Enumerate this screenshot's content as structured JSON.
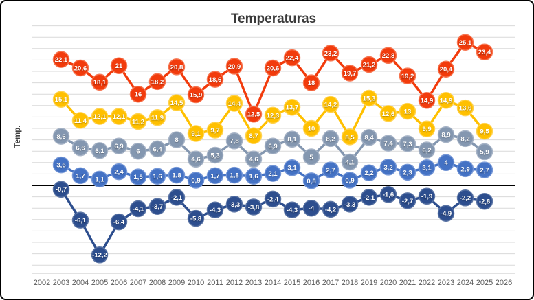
{
  "window": {
    "background": "#ffffff",
    "border_color": "#000000"
  },
  "chart_data": {
    "type": "line",
    "title": "Temperaturas",
    "xlabel": "",
    "ylabel": "Temp.",
    "legend_position": "none",
    "grid": true,
    "gridline_color": "#D9D9D9",
    "zero_line_color": "#000000",
    "axis_line_color": "#C6C6C6",
    "ylim": [
      -16,
      28
    ],
    "grid_step": 2,
    "x_axis_labels": [
      "2002",
      "2003",
      "2004",
      "2005",
      "2006",
      "2007",
      "2008",
      "2009",
      "2010",
      "2011",
      "2012",
      "2013",
      "2014",
      "2015",
      "2016",
      "2017",
      "2018",
      "2019",
      "2020",
      "2021",
      "2022",
      "2023",
      "2024",
      "2025",
      "2026"
    ],
    "years": [
      2003,
      2004,
      2005,
      2006,
      2007,
      2008,
      2009,
      2010,
      2011,
      2012,
      2013,
      2014,
      2015,
      2016,
      2017,
      2018,
      2019,
      2020,
      2021,
      2022,
      2023,
      2024,
      2025
    ],
    "series": [
      {
        "id": "series-gray",
        "color": "#8497B0",
        "ring": "#A6B3C6",
        "values": [
          8.6,
          6.6,
          6.1,
          6.9,
          6,
          6.4,
          8,
          4.6,
          5.3,
          7.8,
          4.6,
          6.9,
          8.1,
          5,
          8.2,
          4.1,
          8.4,
          7.4,
          7.3,
          6.2,
          8.9,
          8.2,
          5.9
        ],
        "labels": [
          "8,6",
          "6,6",
          "6,1",
          "6,9",
          "6",
          "6,4",
          "8",
          "4,6",
          "5,3",
          "7,8",
          "4,6",
          "6,9",
          "8,1",
          "5",
          "8,2",
          "4,1",
          "8,4",
          "7,4",
          "7,3",
          "6,2",
          "8,9",
          "8,2",
          "5,9"
        ]
      },
      {
        "id": "series-gold",
        "color": "#FFC000",
        "ring": "#FFD24D",
        "values": [
          15.1,
          11.4,
          12.1,
          12.1,
          11.2,
          11.9,
          14.5,
          9.1,
          9.7,
          14.4,
          8.7,
          12.3,
          13.7,
          10,
          14.2,
          8.5,
          15.3,
          12.6,
          13,
          9.9,
          14.9,
          13.6,
          9.5
        ],
        "labels": [
          "15,1",
          "11,4",
          "12,1",
          "12,1",
          "11,2",
          "11,9",
          "14,5",
          "9,1",
          "9,7",
          "14,4",
          "8,7",
          "12,3",
          "13,7",
          "10",
          "14,2",
          "8,5",
          "15,3",
          "12,6",
          "13",
          "9,9",
          "14,9",
          "13,6",
          "9,5"
        ]
      },
      {
        "id": "series-red",
        "color": "#F23B0C",
        "ring": "#F6744F",
        "values": [
          22.1,
          20.6,
          18.1,
          21,
          16,
          18.2,
          20.8,
          15.9,
          18.6,
          20.9,
          12.5,
          20.6,
          22.4,
          18,
          23.2,
          19.7,
          21.2,
          22.8,
          19.2,
          14.9,
          20.4,
          25.1,
          23.4
        ],
        "labels": [
          "22,1",
          "20,6",
          "18,1",
          "21",
          "16",
          "18,2",
          "20,8",
          "15,9",
          "18,6",
          "20,9",
          "12,5",
          "20,6",
          "22,4",
          "18",
          "23,2",
          "19,7",
          "21,2",
          "22,8",
          "19,2",
          "14,9",
          "20,4",
          "25,1",
          "23,4"
        ]
      },
      {
        "id": "series-blue",
        "color": "#4472C4",
        "ring": "#7496D6",
        "values": [
          3.6,
          1.7,
          1.1,
          2.4,
          1.5,
          1.6,
          1.8,
          0.9,
          1.7,
          1.8,
          1.6,
          2.1,
          3.1,
          0.8,
          2.7,
          0.9,
          2.2,
          3.2,
          2.3,
          3.1,
          4,
          2.9,
          2.7
        ],
        "labels": [
          "3,6",
          "1,7",
          "1,1",
          "2,4",
          "1,5",
          "1,6",
          "1,8",
          "0,9",
          "1,7",
          "1,8",
          "1,6",
          "2,1",
          "3,1",
          "0,8",
          "2,7",
          "0,9",
          "2,2",
          "3,2",
          "2,3",
          "3,1",
          "4",
          "2,9",
          "2,7"
        ]
      },
      {
        "id": "series-navy",
        "color": "#2D4E8E",
        "ring": "#5872A3",
        "values": [
          -0.7,
          -6.1,
          -12.2,
          -6.4,
          -4.1,
          -3.7,
          -2.1,
          -5.8,
          -4.3,
          -3.3,
          -3.8,
          -2.4,
          -4.3,
          -4,
          -4.2,
          -3.3,
          -2.1,
          -1.6,
          -2.7,
          -1.9,
          -4.9,
          -2.2,
          -2.8
        ],
        "labels": [
          "-0,7",
          "-6,1",
          "-12,2",
          "-6,4",
          "-4,1",
          "-3,7",
          "-2,1",
          "-5,8",
          "-4,3",
          "-3,3",
          "-3,8",
          "-2,4",
          "-4,3",
          "-4",
          "-4,2",
          "-3,3",
          "-2,1",
          "-1,6",
          "-2,7",
          "-1,9",
          "-4,9",
          "-2,2",
          "-2,8"
        ]
      }
    ]
  }
}
